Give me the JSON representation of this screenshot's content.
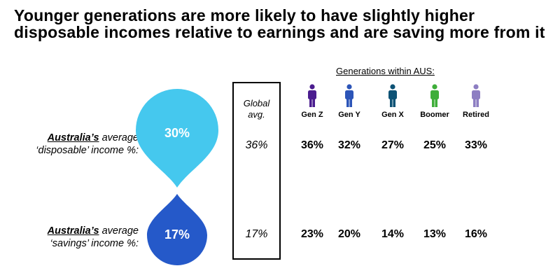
{
  "title": {
    "line1": "Younger generations are more likely to have slightly higher",
    "line2": "disposable incomes relative to earnings and are saving more from it"
  },
  "rows": [
    {
      "country": "Australia’s",
      "label_rest": " average",
      "label_line2": "‘disposable’ income %:",
      "australia_value": "30%",
      "global_value": "36%",
      "generation_values": [
        "36%",
        "32%",
        "27%",
        "25%",
        "33%"
      ]
    },
    {
      "country": "Australia’s",
      "label_rest": " average",
      "label_line2": "‘savings’ income %:",
      "australia_value": "17%",
      "global_value": "17%",
      "generation_values": [
        "23%",
        "20%",
        "14%",
        "13%",
        "16%"
      ]
    }
  ],
  "global": {
    "line1": "Global",
    "line2": "avg."
  },
  "generations_title": "Generations within AUS:",
  "generations": [
    {
      "name": "Gen Z",
      "color": "#4b1d8f"
    },
    {
      "name": "Gen Y",
      "color": "#2c55b8"
    },
    {
      "name": "Gen X",
      "color": "#0d5275"
    },
    {
      "name": "Boomer",
      "color": "#3fae3a"
    },
    {
      "name": "Retired",
      "color": "#8d7ec2"
    }
  ],
  "colors": {
    "disposable_drop": "#45c8ee",
    "savings_drop": "#2559c9"
  }
}
